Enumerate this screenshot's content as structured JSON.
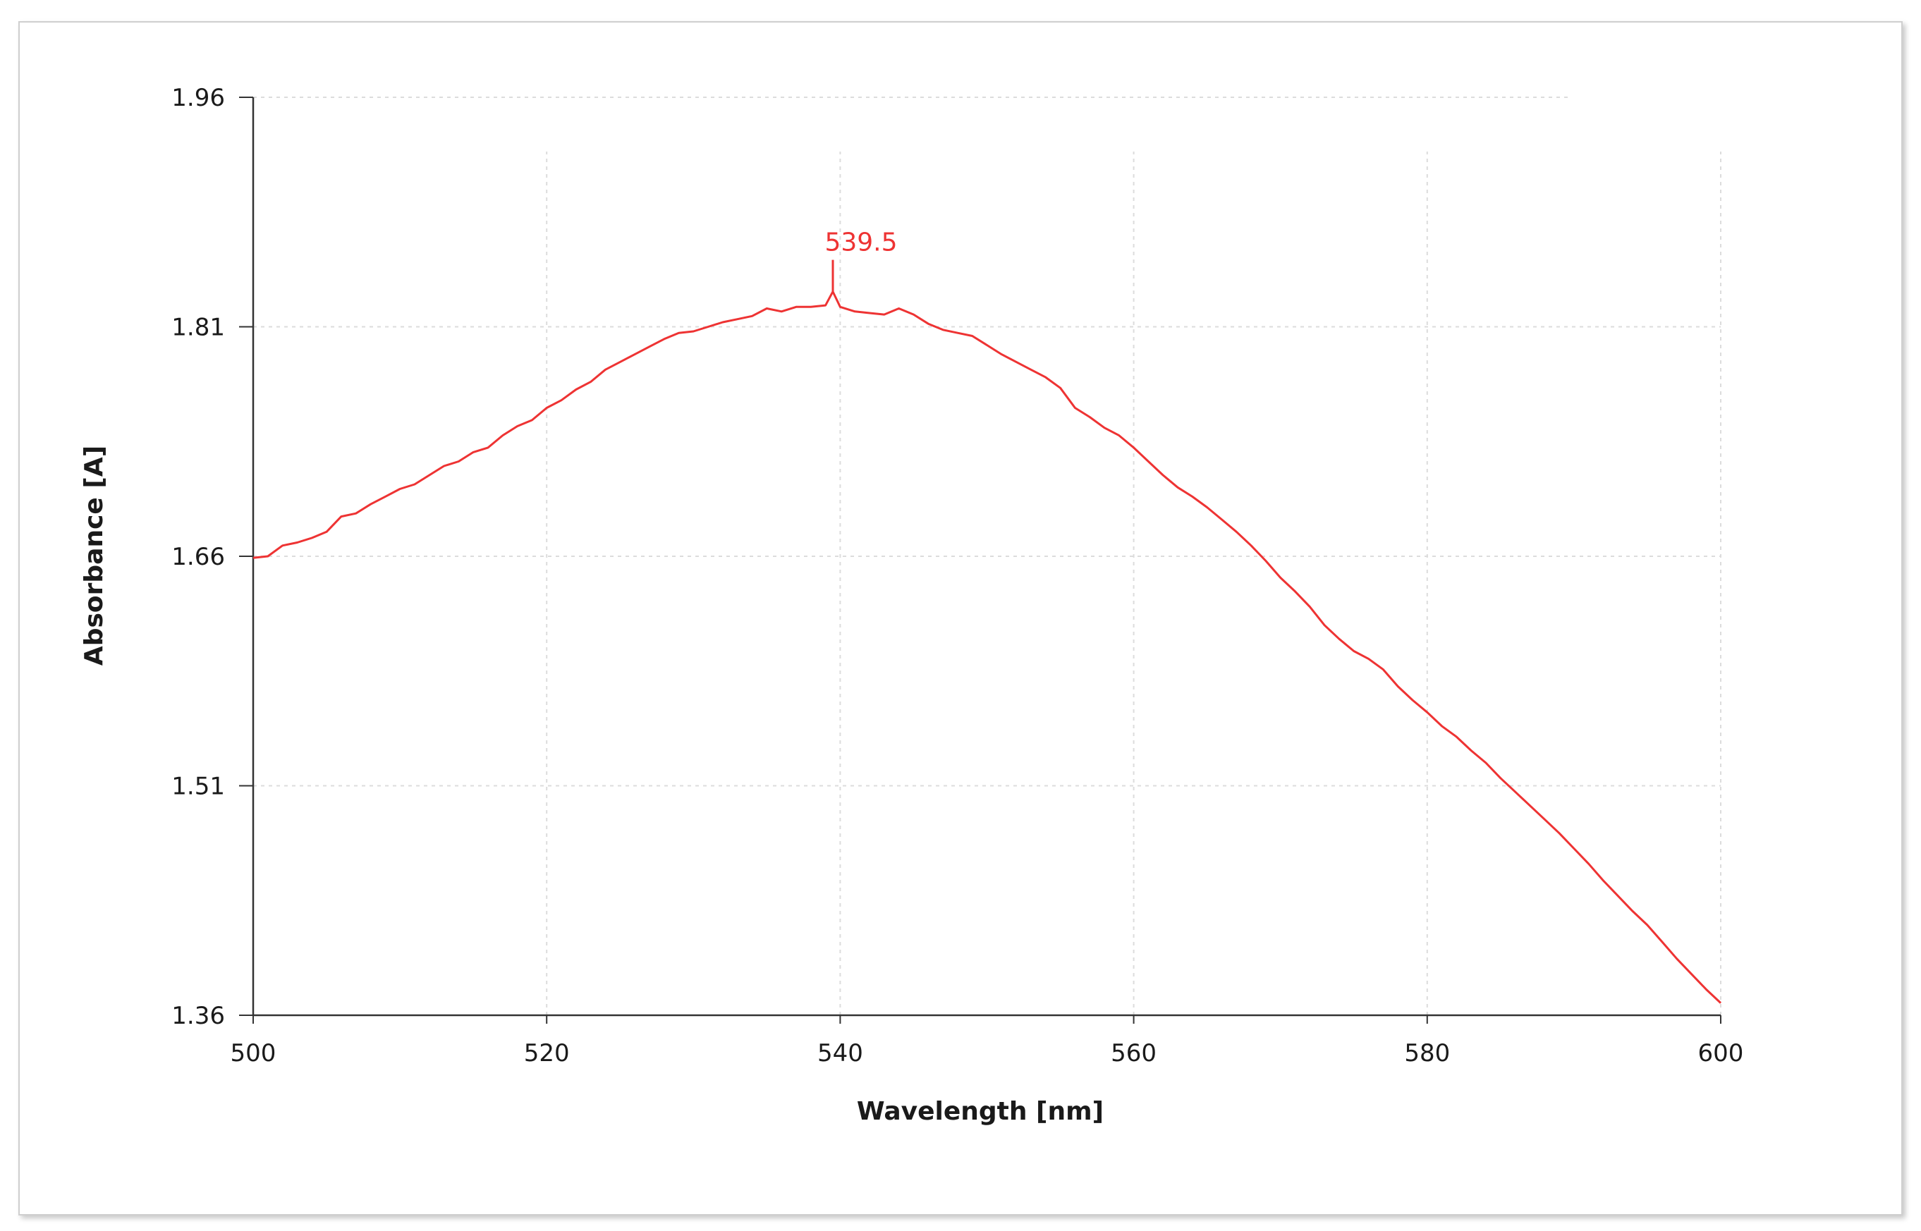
{
  "chart_data": {
    "type": "line",
    "title": "",
    "xlabel": "Wavelength [nm]",
    "ylabel": "Absorbance [A]",
    "xlim": [
      500,
      600
    ],
    "ylim": [
      1.36,
      1.96
    ],
    "x_ticks": [
      "500",
      "520",
      "540",
      "560",
      "580",
      "600"
    ],
    "y_ticks": [
      "1.96",
      "1.81",
      "1.66",
      "1.51",
      "1.36"
    ],
    "grid": true,
    "line_color": "#ee3333",
    "series": [
      {
        "x": [
          500,
          501,
          502,
          503,
          504,
          505,
          506,
          507,
          508,
          509,
          510,
          511,
          512,
          513,
          514,
          515,
          516,
          517,
          518,
          519,
          520,
          521,
          522,
          523,
          524,
          525,
          526,
          527,
          528,
          529,
          530,
          531,
          532,
          533,
          534,
          535,
          536,
          537,
          538,
          539,
          539.5,
          540,
          541,
          542,
          543,
          544,
          545,
          546,
          547,
          548,
          549,
          550,
          551,
          552,
          553,
          554,
          555,
          556,
          557,
          558,
          559,
          560,
          561,
          562,
          563,
          564,
          565,
          566,
          567,
          568,
          569,
          570,
          571,
          572,
          573,
          574,
          575,
          576,
          577,
          578,
          579,
          580,
          581,
          582,
          583,
          584,
          585,
          586,
          587,
          588,
          589,
          590,
          591,
          592,
          593,
          594,
          595,
          596,
          597,
          598,
          599,
          600
        ],
        "y": [
          1.659,
          1.66,
          1.667,
          1.669,
          1.672,
          1.676,
          1.686,
          1.688,
          1.694,
          1.699,
          1.704,
          1.707,
          1.713,
          1.719,
          1.722,
          1.728,
          1.731,
          1.739,
          1.745,
          1.749,
          1.757,
          1.762,
          1.769,
          1.774,
          1.782,
          1.787,
          1.792,
          1.797,
          1.802,
          1.806,
          1.807,
          1.81,
          1.813,
          1.815,
          1.817,
          1.822,
          1.82,
          1.823,
          1.823,
          1.824,
          1.833,
          1.823,
          1.82,
          1.819,
          1.818,
          1.822,
          1.818,
          1.812,
          1.808,
          1.806,
          1.804,
          1.798,
          1.792,
          1.787,
          1.782,
          1.777,
          1.77,
          1.757,
          1.751,
          1.744,
          1.739,
          1.731,
          1.722,
          1.713,
          1.705,
          1.699,
          1.692,
          1.684,
          1.676,
          1.667,
          1.657,
          1.646,
          1.637,
          1.627,
          1.615,
          1.606,
          1.598,
          1.593,
          1.586,
          1.575,
          1.566,
          1.558,
          1.549,
          1.542,
          1.533,
          1.525,
          1.515,
          1.506,
          1.497,
          1.488,
          1.479,
          1.469,
          1.459,
          1.448,
          1.438,
          1.428,
          1.419,
          1.408,
          1.397,
          1.387,
          1.377,
          1.368
        ]
      }
    ],
    "annotations": [
      {
        "x": 539.5,
        "text": "539.5"
      }
    ]
  }
}
